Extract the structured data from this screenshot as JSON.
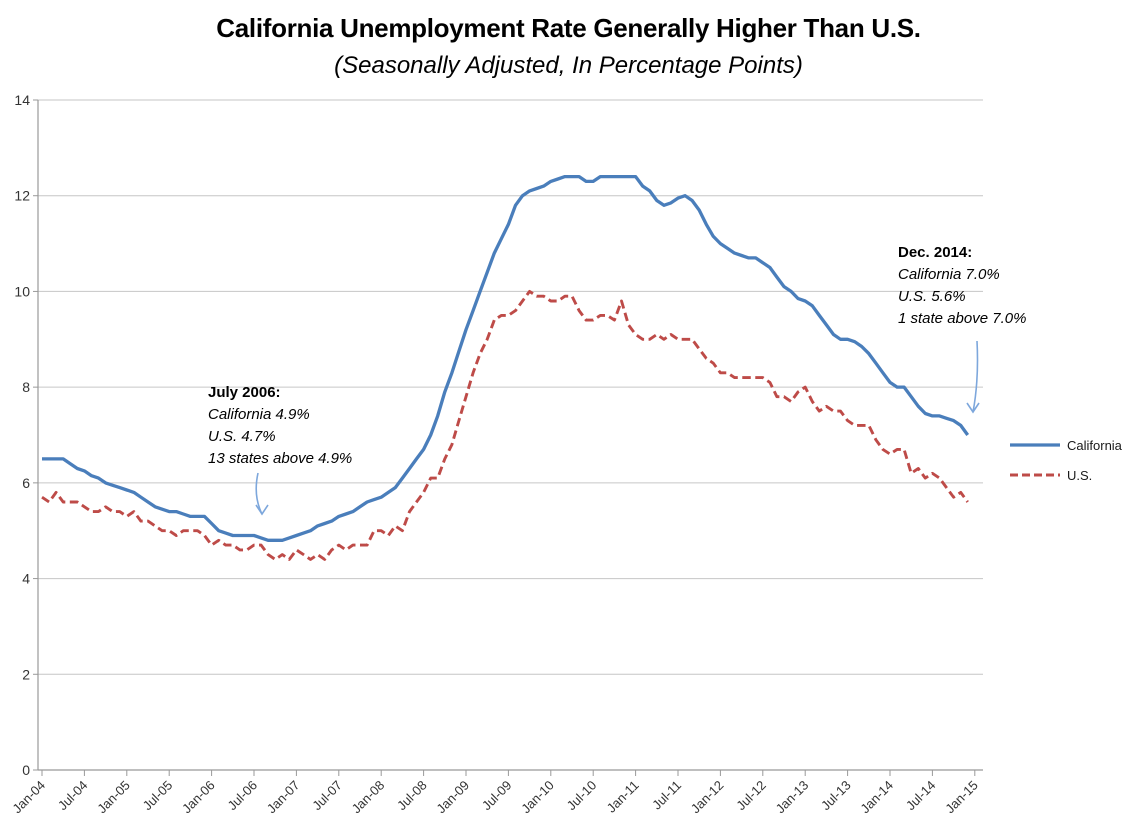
{
  "title": "California Unemployment Rate Generally Higher Than U.S.",
  "subtitle": "(Seasonally Adjusted, In Percentage Points)",
  "chart_data": {
    "type": "line",
    "x_points": "monthly, Jan-2004 through Dec-2014",
    "x_tick_labels": [
      "Jan-04",
      "Jul-04",
      "Jan-05",
      "Jul-05",
      "Jan-06",
      "Jul-06",
      "Jan-07",
      "Jul-07",
      "Jan-08",
      "Jul-08",
      "Jan-09",
      "Jul-09",
      "Jan-10",
      "Jul-10",
      "Jan-11",
      "Jul-11",
      "Jan-12",
      "Jul-12",
      "Jan-13",
      "Jul-13",
      "Jan-14",
      "Jul-14",
      "Jan-15"
    ],
    "y_ticks": [
      0,
      2,
      4,
      6,
      8,
      10,
      12,
      14
    ],
    "ylim": [
      0,
      14
    ],
    "grid": "horizontal",
    "legend_position": "right",
    "series": [
      {
        "name": "California",
        "style": "solid",
        "color": "#4a7ebb",
        "values": [
          6.5,
          6.5,
          6.5,
          6.5,
          6.4,
          6.3,
          6.25,
          6.15,
          6.1,
          6.0,
          5.95,
          5.9,
          5.85,
          5.8,
          5.7,
          5.6,
          5.5,
          5.45,
          5.4,
          5.4,
          5.35,
          5.3,
          5.3,
          5.3,
          5.15,
          5.0,
          4.95,
          4.9,
          4.9,
          4.9,
          4.9,
          4.85,
          4.8,
          4.8,
          4.8,
          4.85,
          4.9,
          4.95,
          5.0,
          5.1,
          5.15,
          5.2,
          5.3,
          5.35,
          5.4,
          5.5,
          5.6,
          5.65,
          5.7,
          5.8,
          5.9,
          6.1,
          6.3,
          6.5,
          6.7,
          7.0,
          7.4,
          7.9,
          8.3,
          8.75,
          9.2,
          9.6,
          10.0,
          10.4,
          10.8,
          11.1,
          11.4,
          11.8,
          12.0,
          12.1,
          12.15,
          12.2,
          12.3,
          12.35,
          12.4,
          12.4,
          12.4,
          12.3,
          12.3,
          12.4,
          12.4,
          12.4,
          12.4,
          12.4,
          12.4,
          12.2,
          12.1,
          11.9,
          11.8,
          11.85,
          11.95,
          12.0,
          11.9,
          11.7,
          11.4,
          11.15,
          11.0,
          10.9,
          10.8,
          10.75,
          10.7,
          10.7,
          10.6,
          10.5,
          10.3,
          10.1,
          10.0,
          9.85,
          9.8,
          9.7,
          9.5,
          9.3,
          9.1,
          9.0,
          9.0,
          8.95,
          8.85,
          8.7,
          8.5,
          8.3,
          8.1,
          8.0,
          8.0,
          7.8,
          7.6,
          7.45,
          7.4,
          7.4,
          7.35,
          7.3,
          7.2,
          7.0
        ]
      },
      {
        "name": "U.S.",
        "style": "dashed",
        "color": "#be4b48",
        "values": [
          5.7,
          5.6,
          5.8,
          5.6,
          5.6,
          5.6,
          5.5,
          5.4,
          5.4,
          5.5,
          5.4,
          5.4,
          5.3,
          5.4,
          5.2,
          5.2,
          5.1,
          5.0,
          5.0,
          4.9,
          5.0,
          5.0,
          5.0,
          4.9,
          4.7,
          4.8,
          4.7,
          4.7,
          4.6,
          4.6,
          4.7,
          4.7,
          4.5,
          4.4,
          4.5,
          4.4,
          4.6,
          4.5,
          4.4,
          4.5,
          4.4,
          4.6,
          4.7,
          4.6,
          4.7,
          4.7,
          4.7,
          5.0,
          5.0,
          4.9,
          5.1,
          5.0,
          5.4,
          5.6,
          5.8,
          6.1,
          6.1,
          6.5,
          6.8,
          7.3,
          7.8,
          8.3,
          8.7,
          9.0,
          9.4,
          9.5,
          9.5,
          9.6,
          9.8,
          10.0,
          9.9,
          9.9,
          9.8,
          9.8,
          9.9,
          9.9,
          9.6,
          9.4,
          9.4,
          9.5,
          9.5,
          9.4,
          9.8,
          9.3,
          9.1,
          9.0,
          9.0,
          9.1,
          9.0,
          9.1,
          9.0,
          9.0,
          9.0,
          8.8,
          8.6,
          8.5,
          8.3,
          8.3,
          8.2,
          8.2,
          8.2,
          8.2,
          8.2,
          8.1,
          7.8,
          7.8,
          7.7,
          7.9,
          8.0,
          7.7,
          7.5,
          7.6,
          7.5,
          7.5,
          7.3,
          7.2,
          7.2,
          7.2,
          6.9,
          6.7,
          6.6,
          6.7,
          6.7,
          6.2,
          6.3,
          6.1,
          6.2,
          6.1,
          5.9,
          5.7,
          5.8,
          5.6
        ]
      }
    ]
  },
  "annotations": {
    "july2006": {
      "title": "July 2006:",
      "line1": "California 4.9%",
      "line2": "U.S. 4.7%",
      "line3": "13 states above 4.9%"
    },
    "dec2014": {
      "title": "Dec. 2014:",
      "line1": "California 7.0%",
      "line2": "U.S. 5.6%",
      "line3": "1 state above 7.0%"
    }
  },
  "legend": {
    "items": [
      {
        "label": "California"
      },
      {
        "label": "U.S."
      }
    ]
  },
  "colors": {
    "california": "#4a7ebb",
    "us": "#be4b48",
    "arrow": "#7da7dc",
    "gridline": "#c6c6c6",
    "axis": "#999999",
    "tick_text": "#333333"
  }
}
